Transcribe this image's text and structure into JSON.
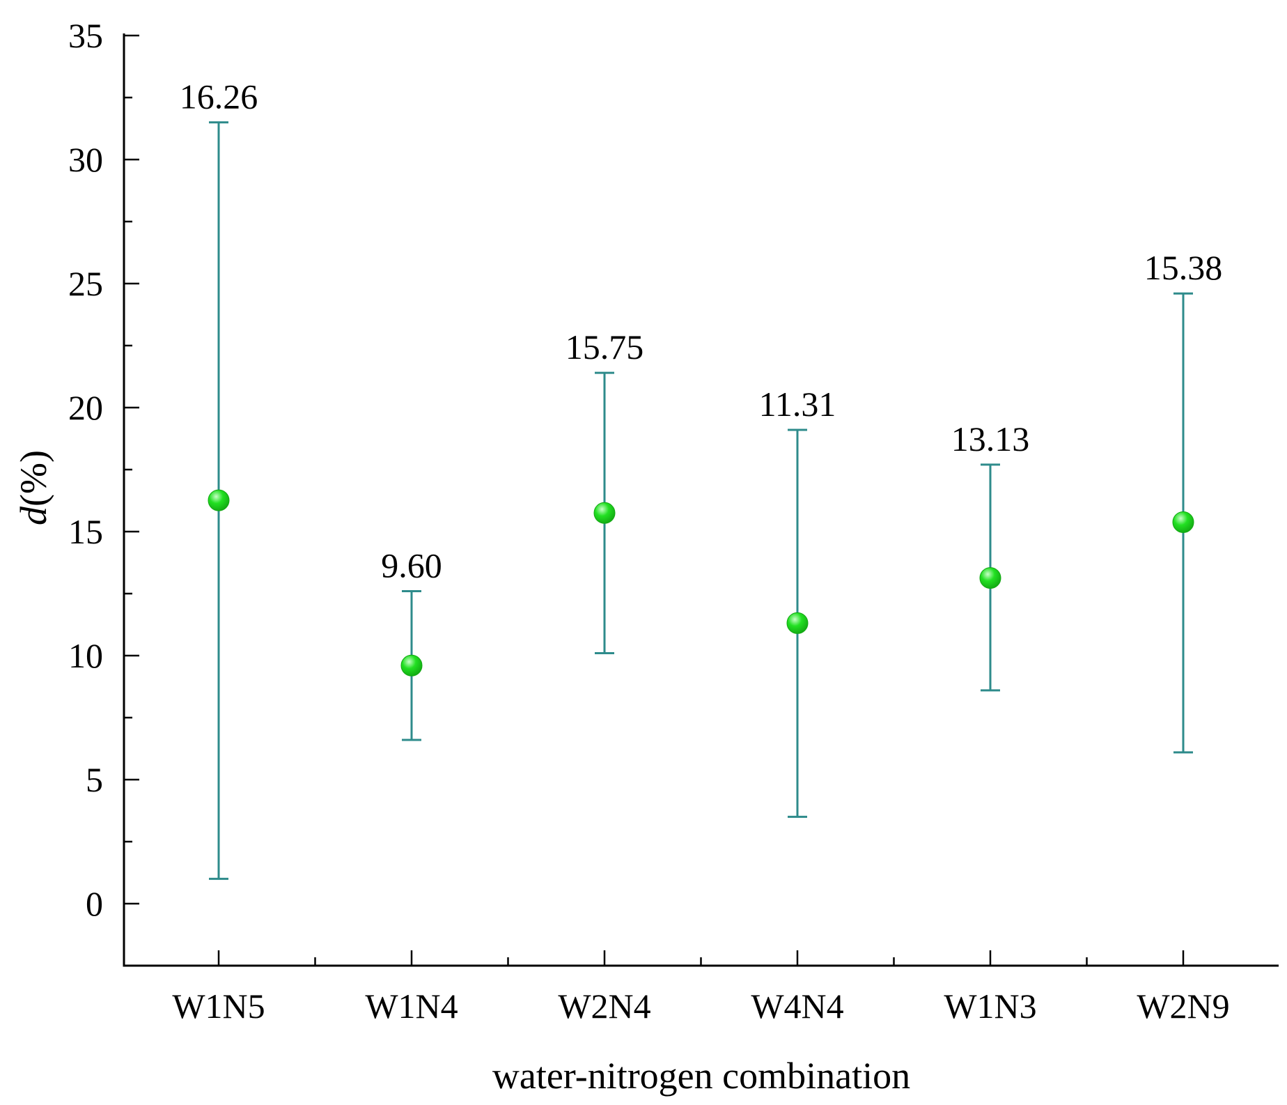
{
  "chart_data": {
    "type": "scatter",
    "title": "",
    "xlabel": "water-nitrogen combination",
    "ylabel_italic": "d",
    "ylabel_rest": "(%)",
    "ylim": [
      -2.5,
      35
    ],
    "yticks": [
      0,
      5,
      10,
      15,
      20,
      25,
      30,
      35
    ],
    "ytick_labels": [
      "0",
      "5",
      "10",
      "15",
      "20",
      "25",
      "30",
      "35"
    ],
    "categories": [
      "W1N5",
      "W1N4",
      "W2N4",
      "W4N4",
      "W1N3",
      "W2N9"
    ],
    "values": [
      16.26,
      9.6,
      15.75,
      11.31,
      13.13,
      15.38
    ],
    "value_labels": [
      "16.26",
      "9.60",
      "15.75",
      "11.31",
      "13.13",
      "15.38"
    ],
    "error_low": [
      1.0,
      6.6,
      10.1,
      3.5,
      8.6,
      6.1
    ],
    "error_high": [
      31.5,
      12.6,
      21.4,
      19.1,
      17.7,
      24.6
    ],
    "grid": false,
    "legend": "none",
    "colors": {
      "marker": "#22e022",
      "marker_highlight": "#c8ffc8",
      "marker_edge": "#12a812",
      "error_bar": "#2e8b8b",
      "axis": "#000000"
    }
  }
}
